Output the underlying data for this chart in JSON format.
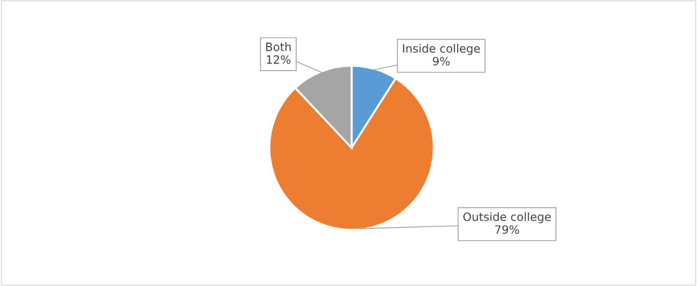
{
  "chart_data": {
    "type": "pie",
    "categories": [
      "Inside college",
      "Outside college",
      "Both"
    ],
    "values": [
      9,
      79,
      12
    ],
    "value_labels": [
      "9%",
      "79%",
      "12%"
    ],
    "colors": [
      "#5b9bd5",
      "#ed7d31",
      "#a5a5a5"
    ],
    "legend": false
  }
}
